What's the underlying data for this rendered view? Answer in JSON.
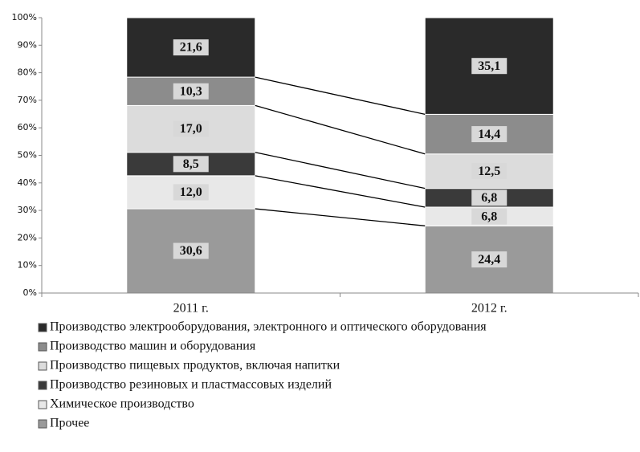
{
  "chart_data": {
    "type": "stacked_bar",
    "categories": [
      "2011 г.",
      "2012 г."
    ],
    "series": [
      {
        "name": "Производство электрооборудования,  электронного и оптического оборудования",
        "color": "#2a2a2a",
        "values": [
          21.6,
          35.1
        ],
        "value_labels": [
          "21,6",
          "35,1"
        ]
      },
      {
        "name": "Производство машин и оборудования",
        "color": "#8c8c8c",
        "values": [
          10.3,
          14.4
        ],
        "value_labels": [
          "10,3",
          "14,4"
        ]
      },
      {
        "name": "Производство пищевых продуктов, включая напитки",
        "color": "#dcdcdc",
        "values": [
          17.0,
          12.5
        ],
        "value_labels": [
          "17,0",
          "12,5"
        ]
      },
      {
        "name": "Производство резиновых и пластмассовых изделий",
        "color": "#3a3a3a",
        "values": [
          8.5,
          6.8
        ],
        "value_labels": [
          "8,5",
          "6,8"
        ]
      },
      {
        "name": "Химическое производство",
        "color": "#e8e8e8",
        "values": [
          12.0,
          6.8
        ],
        "value_labels": [
          "12,0",
          "6,8"
        ]
      },
      {
        "name": "Прочее",
        "color": "#9a9a9a",
        "values": [
          30.6,
          24.4
        ],
        "value_labels": [
          "30,6",
          "24,4"
        ]
      }
    ],
    "ylim": [
      0,
      100
    ],
    "yticks": [
      {
        "value": 0,
        "label": "0%"
      },
      {
        "value": 10,
        "label": "10%"
      },
      {
        "value": 20,
        "label": "20%"
      },
      {
        "value": 30,
        "label": "30%"
      },
      {
        "value": 40,
        "label": "40%"
      },
      {
        "value": 50,
        "label": "50%"
      },
      {
        "value": 60,
        "label": "60%"
      },
      {
        "value": 70,
        "label": "70%"
      },
      {
        "value": 80,
        "label": "80%"
      },
      {
        "value": 90,
        "label": "90%"
      },
      {
        "value": 100,
        "label": "100%"
      }
    ],
    "legend": "bottom"
  }
}
